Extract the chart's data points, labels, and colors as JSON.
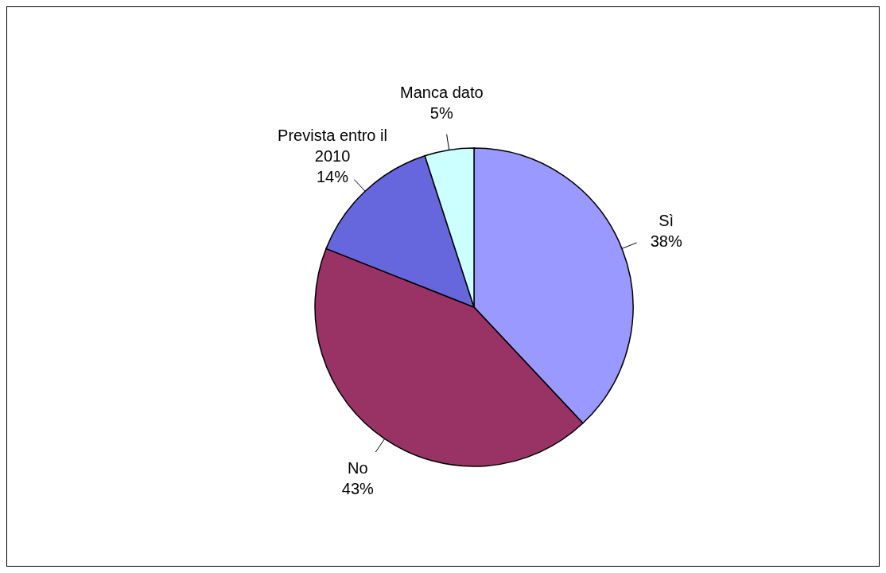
{
  "chart_data": {
    "type": "pie",
    "categories": [
      "Sì",
      "No",
      "Prevista entro il 2010",
      "Manca dato"
    ],
    "values": [
      38,
      43,
      14,
      5
    ],
    "colors": [
      "#9999ff",
      "#993366",
      "#6666dd",
      "#ccffff"
    ],
    "value_labels": [
      "38%",
      "43%",
      "14%",
      "5%"
    ],
    "legend": false
  }
}
